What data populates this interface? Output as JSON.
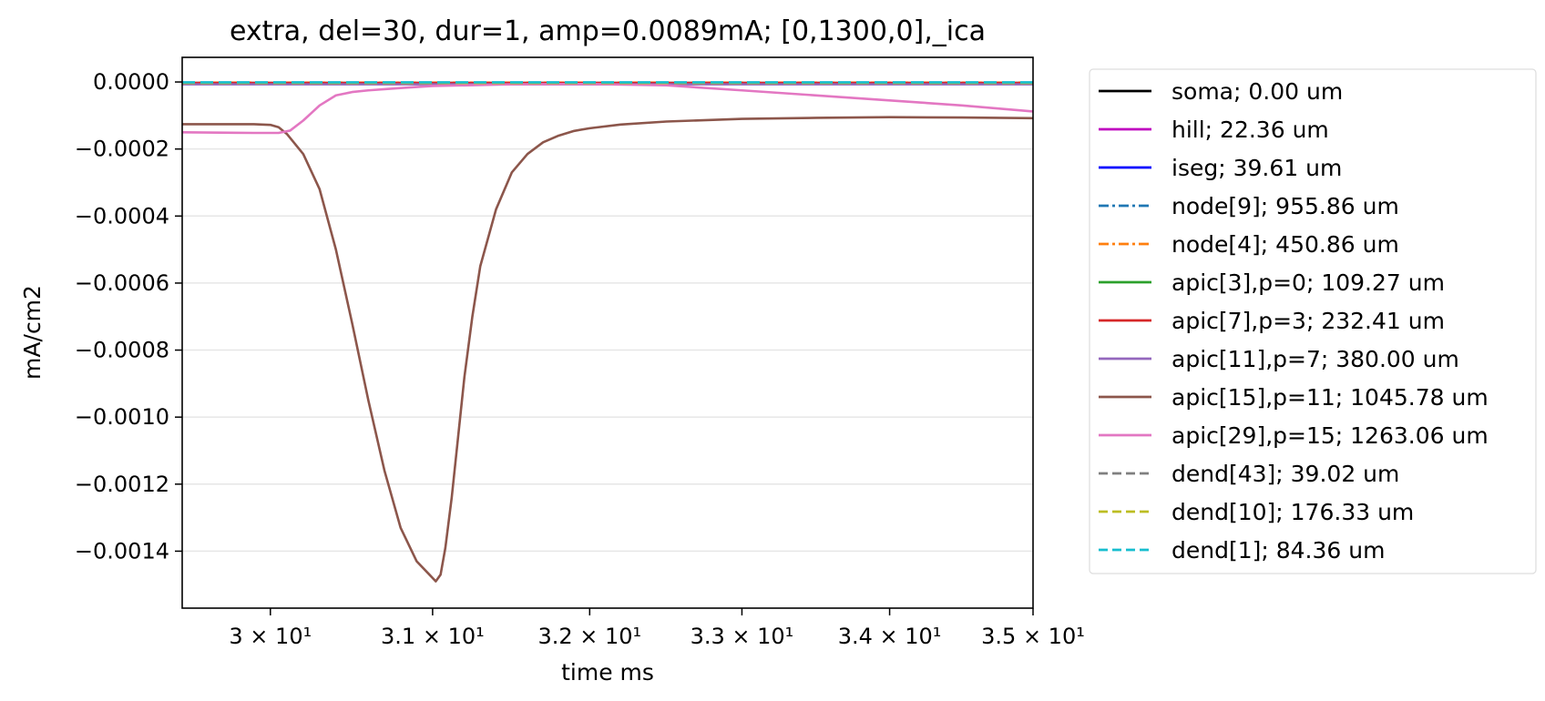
{
  "chart_data": {
    "type": "line",
    "title": "extra, del=30, dur=1, amp=0.0089mA; [0,1300,0],_ica",
    "xlabel": "time ms",
    "ylabel": "mA/cm2",
    "xscale": "log",
    "xlim": [
      29.47,
      35.0
    ],
    "ylim": [
      -0.00157,
      7.35e-05
    ],
    "grid": "horizontal",
    "legend_position": "outside-right",
    "xticks": [
      {
        "value": 30,
        "label": "3 × 10¹"
      },
      {
        "value": 31,
        "label": "3.1 × 10¹"
      },
      {
        "value": 32,
        "label": "3.2 × 10¹"
      },
      {
        "value": 33,
        "label": "3.3 × 10¹"
      },
      {
        "value": 34,
        "label": "3.4 × 10¹"
      },
      {
        "value": 35,
        "label": "3.5 × 10¹"
      }
    ],
    "yticks": [
      {
        "value": 0,
        "label": "0.0000"
      },
      {
        "value": -0.0002,
        "label": "−0.0002"
      },
      {
        "value": -0.0004,
        "label": "−0.0004"
      },
      {
        "value": -0.0006,
        "label": "−0.0006"
      },
      {
        "value": -0.0008,
        "label": "−0.0008"
      },
      {
        "value": -0.001,
        "label": "−0.0010"
      },
      {
        "value": -0.0012,
        "label": "−0.0012"
      },
      {
        "value": -0.0014,
        "label": "−0.0014"
      }
    ],
    "series": [
      {
        "name": "soma; 0.00 um",
        "color": "#000000",
        "dash": "solid",
        "x": [
          29.47,
          35.0
        ],
        "y": [
          -3e-06,
          -3e-06
        ]
      },
      {
        "name": "hill; 22.36 um",
        "color": "#bf00bf",
        "dash": "solid",
        "x": [
          29.47,
          35.0
        ],
        "y": [
          -5e-06,
          -5e-06
        ]
      },
      {
        "name": "iseg; 39.61 um",
        "color": "#0000ff",
        "dash": "solid",
        "x": [
          29.47,
          35.0
        ],
        "y": [
          -4e-06,
          -4e-06
        ]
      },
      {
        "name": "node[9]; 955.86 um",
        "color": "#1f77b4",
        "dash": "dashdot",
        "x": [
          29.47,
          35.0
        ],
        "y": [
          -2e-06,
          -2e-06
        ]
      },
      {
        "name": "node[4]; 450.86 um",
        "color": "#ff7f0e",
        "dash": "dashdot",
        "x": [
          29.47,
          35.0
        ],
        "y": [
          -2e-06,
          -2e-06
        ]
      },
      {
        "name": "apic[3],p=0; 109.27 um",
        "color": "#2ca02c",
        "dash": "solid",
        "x": [
          29.47,
          35.0
        ],
        "y": [
          -4e-06,
          -4e-06
        ]
      },
      {
        "name": "apic[7],p=3; 232.41 um",
        "color": "#d62728",
        "dash": "solid",
        "x": [
          29.47,
          35.0
        ],
        "y": [
          -3e-06,
          -3e-06
        ]
      },
      {
        "name": "apic[11],p=7; 380.00 um",
        "color": "#9467bd",
        "dash": "solid",
        "x": [
          29.47,
          35.0
        ],
        "y": [
          -7e-06,
          -7e-06
        ]
      },
      {
        "name": "apic[15],p=11; 1045.78 um",
        "color": "#8c564b",
        "dash": "solid",
        "x": [
          29.47,
          29.9,
          30.0,
          30.05,
          30.1,
          30.2,
          30.3,
          30.4,
          30.5,
          30.6,
          30.7,
          30.8,
          30.9,
          30.98,
          31.02,
          31.05,
          31.08,
          31.12,
          31.16,
          31.2,
          31.25,
          31.3,
          31.4,
          31.5,
          31.6,
          31.7,
          31.8,
          31.9,
          32.0,
          32.2,
          32.5,
          33.0,
          33.5,
          34.0,
          34.5,
          35.0
        ],
        "y": [
          -0.000126,
          -0.000126,
          -0.000128,
          -0.000135,
          -0.000155,
          -0.000215,
          -0.00032,
          -0.0005,
          -0.00072,
          -0.00095,
          -0.00116,
          -0.00133,
          -0.00143,
          -0.00147,
          -0.00149,
          -0.00147,
          -0.00139,
          -0.00124,
          -0.00106,
          -0.00088,
          -0.0007,
          -0.00055,
          -0.00038,
          -0.00027,
          -0.000215,
          -0.00018,
          -0.00016,
          -0.000146,
          -0.000138,
          -0.000127,
          -0.000118,
          -0.00011,
          -0.000107,
          -0.000105,
          -0.000106,
          -0.000108
        ]
      },
      {
        "name": "apic[29],p=15; 1263.06 um",
        "color": "#e377c2",
        "dash": "solid",
        "x": [
          29.47,
          29.9,
          30.05,
          30.12,
          30.2,
          30.3,
          30.4,
          30.5,
          30.6,
          30.8,
          31.0,
          31.5,
          32.0,
          32.5,
          33.0,
          33.5,
          34.0,
          34.5,
          35.0
        ],
        "y": [
          -0.00015,
          -0.000152,
          -0.000152,
          -0.000145,
          -0.000115,
          -7e-05,
          -4e-05,
          -3e-05,
          -2.5e-05,
          -1.8e-05,
          -1.2e-05,
          -7e-06,
          -6e-06,
          -1e-05,
          -2.5e-05,
          -4e-05,
          -5.5e-05,
          -7e-05,
          -8.8e-05
        ]
      },
      {
        "name": "dend[43]; 39.02 um",
        "color": "#7f7f7f",
        "dash": "dashed",
        "x": [
          29.47,
          35.0
        ],
        "y": [
          -2e-06,
          -2e-06
        ]
      },
      {
        "name": "dend[10]; 176.33 um",
        "color": "#bcbd22",
        "dash": "dashed",
        "x": [
          29.47,
          35.0
        ],
        "y": [
          -3e-06,
          -3e-06
        ]
      },
      {
        "name": "dend[1]; 84.36 um",
        "color": "#17becf",
        "dash": "dashed",
        "x": [
          29.47,
          35.0
        ],
        "y": [
          -1e-06,
          -1e-06
        ]
      }
    ]
  }
}
